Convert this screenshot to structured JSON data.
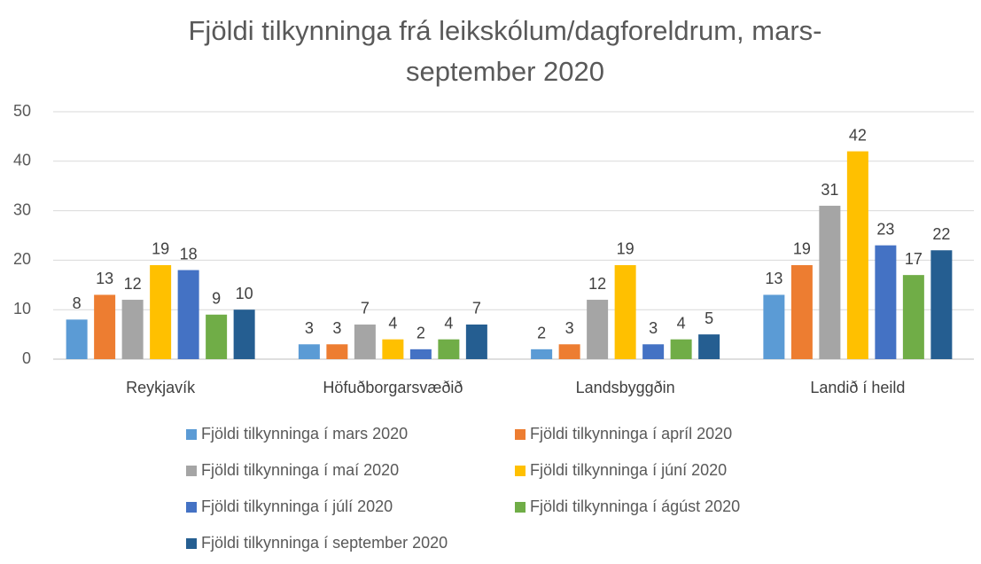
{
  "chart_data": {
    "type": "bar",
    "title": "Fjöldi tilkynninga frá leikskólum/dagforeldrum, mars-september 2020",
    "categories": [
      "Reykjavík",
      "Höfuðborgarsvæðið",
      "Landsbyggðin",
      "Landið í heild"
    ],
    "series": [
      {
        "name": "Fjöldi tilkynninga í mars 2020",
        "color": "#5b9bd5",
        "values": [
          8,
          3,
          2,
          13
        ]
      },
      {
        "name": "Fjöldi tilkynninga í apríl 2020",
        "color": "#ed7d31",
        "values": [
          13,
          3,
          3,
          19
        ]
      },
      {
        "name": "Fjöldi tilkynninga í maí 2020",
        "color": "#a5a5a5",
        "values": [
          12,
          7,
          12,
          31
        ]
      },
      {
        "name": "Fjöldi tilkynninga í júní 2020",
        "color": "#ffc000",
        "values": [
          19,
          4,
          19,
          42
        ]
      },
      {
        "name": "Fjöldi tilkynninga í júlí 2020",
        "color": "#4472c4",
        "values": [
          18,
          2,
          3,
          23
        ]
      },
      {
        "name": "Fjöldi tilkynninga í ágúst 2020",
        "color": "#70ad47",
        "values": [
          9,
          4,
          4,
          17
        ]
      },
      {
        "name": "Fjöldi tilkynninga í september 2020",
        "color": "#255e91",
        "values": [
          10,
          7,
          5,
          22
        ]
      }
    ],
    "ylim": [
      0,
      50
    ],
    "yticks": [
      0,
      10,
      20,
      30,
      40,
      50
    ],
    "grid": true,
    "legend": "bottom"
  }
}
